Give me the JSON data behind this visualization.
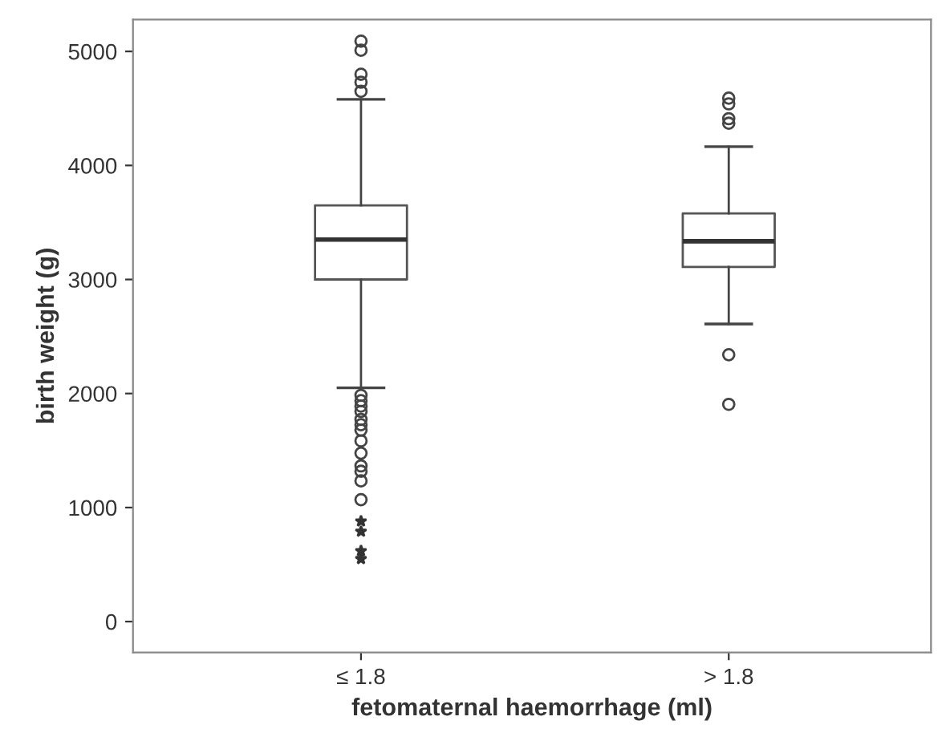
{
  "chart_data": {
    "type": "box",
    "xlabel": "fetomaternal haemorrhage (ml)",
    "ylabel": "birth weight (g)",
    "categories": [
      "≤ 1.8",
      "> 1.8"
    ],
    "boxes": [
      {
        "low": 2050,
        "q1": 3000,
        "median": 3350,
        "q3": 3650,
        "high": 4580,
        "outliers": [
          5090,
          5010,
          4800,
          4730,
          4650,
          1984,
          1937,
          1890,
          1843,
          1773,
          1726,
          1679,
          1585,
          1477,
          1365,
          1318,
          1234,
          1069,
          880,
          790,
          620,
          550
        ]
      },
      {
        "low": 2610,
        "q1": 3110,
        "median": 3335,
        "q3": 3580,
        "high": 4165,
        "outliers": [
          4590,
          4540,
          4410,
          4370,
          2340,
          1905
        ]
      }
    ],
    "ylim": [
      -270,
      5280
    ],
    "yticks": [
      0,
      1000,
      2000,
      3000,
      4000,
      5000
    ],
    "grid": false,
    "legend": false
  }
}
